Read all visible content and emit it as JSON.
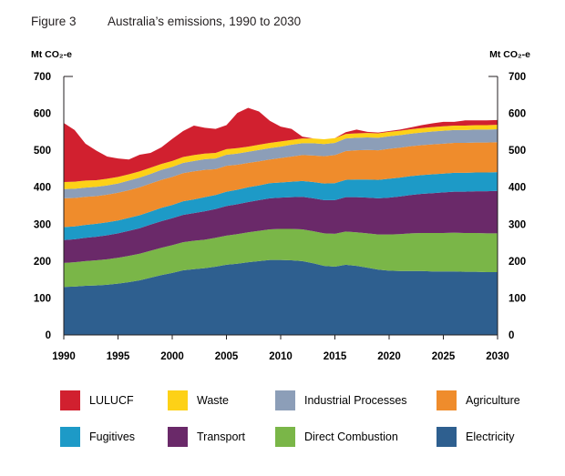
{
  "figure": {
    "number": "Figure 3",
    "title": "Australia’s emissions, 1990 to 2030"
  },
  "chart_data": {
    "type": "area",
    "stacked": true,
    "ylabel_left": "Mt CO₂-e",
    "ylabel_right": "Mt CO₂-e",
    "ylim": [
      0,
      700
    ],
    "yticks": [
      "0",
      "100",
      "200",
      "300",
      "400",
      "500",
      "600",
      "700"
    ],
    "xlim": [
      1990,
      2030
    ],
    "xticks": [
      "1990",
      "1995",
      "2000",
      "2005",
      "2010",
      "2015",
      "2020",
      "2025",
      "2030"
    ],
    "grid": false,
    "legend_position": "bottom",
    "x": [
      1990,
      1991,
      1992,
      1993,
      1994,
      1995,
      1996,
      1997,
      1998,
      1999,
      2000,
      2001,
      2002,
      2003,
      2004,
      2005,
      2006,
      2007,
      2008,
      2009,
      2010,
      2011,
      2012,
      2013,
      2014,
      2015,
      2016,
      2017,
      2018,
      2019,
      2020,
      2021,
      2022,
      2023,
      2024,
      2025,
      2026,
      2027,
      2028,
      2029,
      2030
    ],
    "series": [
      {
        "name": "Electricity",
        "color": "#2e5f8f",
        "values": [
          130,
          131,
          133,
          134,
          136,
          139,
          143,
          148,
          155,
          162,
          168,
          175,
          178,
          181,
          185,
          190,
          193,
          197,
          200,
          203,
          203,
          202,
          200,
          194,
          187,
          185,
          190,
          187,
          182,
          177,
          174,
          173,
          173,
          173,
          172,
          172,
          172,
          171,
          171,
          170,
          170
        ]
      },
      {
        "name": "Direct Combustion",
        "color": "#7ab648",
        "values": [
          65,
          66,
          67,
          68,
          69,
          70,
          71,
          72,
          73,
          74,
          75,
          76,
          77,
          77,
          78,
          79,
          80,
          81,
          82,
          83,
          84,
          85,
          86,
          87,
          88,
          89,
          90,
          91,
          93,
          95,
          98,
          100,
          102,
          103,
          104,
          104,
          105,
          105,
          105,
          105,
          105
        ]
      },
      {
        "name": "Transport",
        "color": "#6a2969",
        "values": [
          62,
          62,
          63,
          64,
          65,
          66,
          68,
          69,
          71,
          72,
          73,
          74,
          75,
          77,
          78,
          80,
          81,
          82,
          83,
          84,
          85,
          86,
          88,
          89,
          90,
          91,
          93,
          95,
          97,
          98,
          100,
          102,
          104,
          106,
          108,
          110,
          111,
          112,
          113,
          114,
          115
        ]
      },
      {
        "name": "Fugitives",
        "color": "#1d9ac7",
        "values": [
          35,
          35,
          35,
          35,
          35,
          35,
          35,
          35,
          35,
          36,
          36,
          37,
          37,
          38,
          38,
          39,
          39,
          40,
          40,
          41,
          41,
          42,
          43,
          44,
          45,
          46,
          47,
          48,
          49,
          50,
          51,
          51,
          51,
          51,
          51,
          51,
          51,
          51,
          51,
          51,
          51
        ]
      },
      {
        "name": "Agriculture",
        "color": "#ef8c2c",
        "values": [
          78,
          77,
          76,
          75,
          75,
          75,
          75,
          76,
          76,
          76,
          76,
          76,
          76,
          74,
          70,
          70,
          68,
          66,
          65,
          64,
          66,
          68,
          70,
          72,
          74,
          76,
          78,
          79,
          80,
          80,
          81,
          81,
          81,
          81,
          81,
          81,
          81,
          81,
          81,
          81,
          81
        ]
      },
      {
        "name": "Industrial Processes",
        "color": "#8c9eb8",
        "values": [
          25,
          25,
          25,
          25,
          25,
          25,
          26,
          26,
          26,
          27,
          27,
          28,
          28,
          29,
          29,
          30,
          30,
          30,
          31,
          31,
          31,
          32,
          32,
          33,
          33,
          33,
          34,
          34,
          34,
          34,
          34,
          34,
          34,
          34,
          35,
          35,
          35,
          35,
          35,
          35,
          35
        ]
      },
      {
        "name": "Waste",
        "color": "#fdd117",
        "values": [
          19,
          19,
          19,
          18,
          18,
          18,
          17,
          17,
          17,
          16,
          16,
          16,
          16,
          15,
          15,
          15,
          15,
          14,
          14,
          14,
          14,
          13,
          13,
          13,
          13,
          13,
          12,
          12,
          12,
          12,
          12,
          12,
          12,
          12,
          12,
          12,
          12,
          12,
          12,
          12,
          12
        ]
      },
      {
        "name": "LULUCF",
        "color": "#d1202f",
        "values": [
          160,
          140,
          100,
          80,
          60,
          50,
          40,
          45,
          40,
          45,
          60,
          70,
          80,
          70,
          65,
          65,
          95,
          105,
          90,
          60,
          40,
          30,
          5,
          0,
          0,
          0,
          5,
          10,
          3,
          2,
          2,
          3,
          5,
          8,
          10,
          12,
          10,
          14,
          13,
          13,
          13
        ]
      }
    ]
  }
}
